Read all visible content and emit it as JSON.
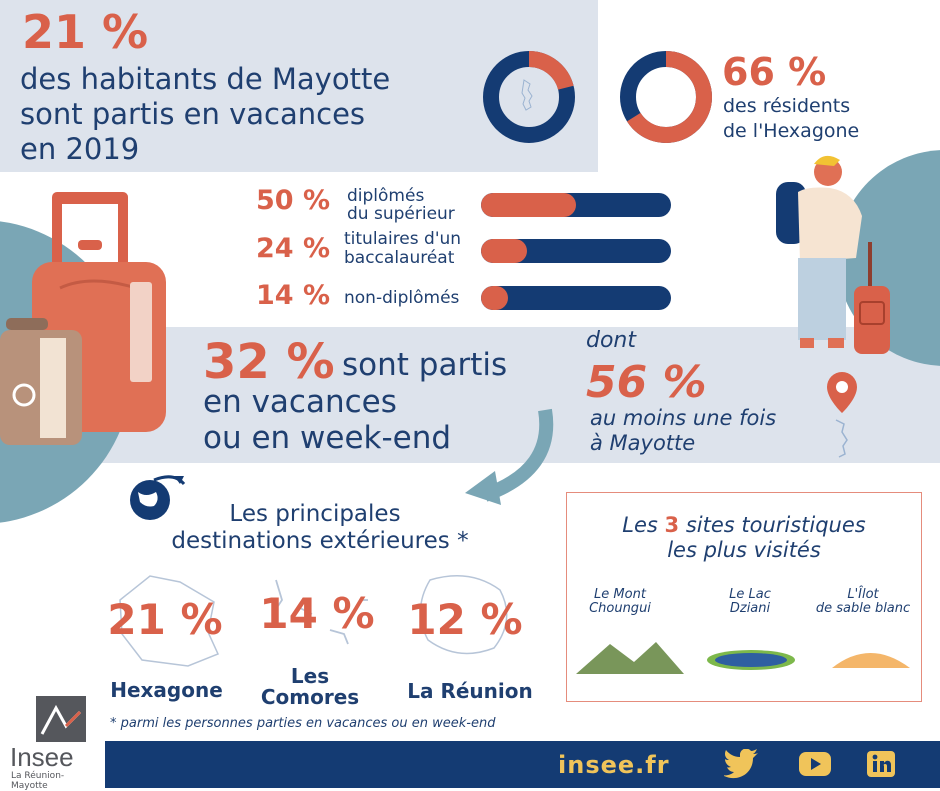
{
  "colors": {
    "accent": "#d9614a",
    "navy": "#143b73",
    "band": "#dde3ec",
    "teal": "#7aa6b5"
  },
  "mayotte": {
    "pct": "21 %",
    "line1": "des habitants de Mayotte",
    "line2": "sont partis en vacances",
    "line3": "en 2019",
    "ring_fraction": 0.21
  },
  "hexagone": {
    "pct": "66 %",
    "line1": "des résidents",
    "line2": "de l'Hexagone",
    "ring_fraction": 0.66
  },
  "diplomas": [
    {
      "pct": "50 %",
      "label1": "diplômés",
      "label2": "du supérieur",
      "value": 0.5
    },
    {
      "pct": "24 %",
      "label1": "titulaires d'un",
      "label2": "baccalauréat",
      "value": 0.24
    },
    {
      "pct": "14 %",
      "label1": "non-diplômés",
      "label2": "",
      "value": 0.14
    }
  ],
  "vacation": {
    "pct": "32 %",
    "text1": "sont partis",
    "text2": "en vacances",
    "text3": "ou en week-end"
  },
  "dont": {
    "label": "dont",
    "pct": "56 %",
    "text1": "au moins une fois",
    "text2": "à Mayotte"
  },
  "destinations": {
    "title1": "Les principales",
    "title2": "destinations extérieures *",
    "items": [
      {
        "pct": "21 %",
        "name1": "Hexagone",
        "name2": ""
      },
      {
        "pct": "14 %",
        "name1": "Les",
        "name2": "Comores"
      },
      {
        "pct": "12 %",
        "name1": "La Réunion",
        "name2": ""
      }
    ],
    "footnote": "* parmi les personnes parties en vacances ou en week-end"
  },
  "sites": {
    "title_pre": "Les ",
    "title_num": "3",
    "title_post": " sites touristiques",
    "title2": "les plus visités",
    "items": [
      {
        "line1": "Le Mont",
        "line2": "Choungui"
      },
      {
        "line1": "Le Lac",
        "line2": "Dziani"
      },
      {
        "line1": "L'Îlot",
        "line2": "de sable blanc"
      }
    ]
  },
  "logo": {
    "name": "Insee",
    "sub": "La Réunion-Mayotte"
  },
  "footer": {
    "site": "insee.fr",
    "icons": [
      "twitter-icon",
      "youtube-icon",
      "linkedin-icon"
    ]
  }
}
